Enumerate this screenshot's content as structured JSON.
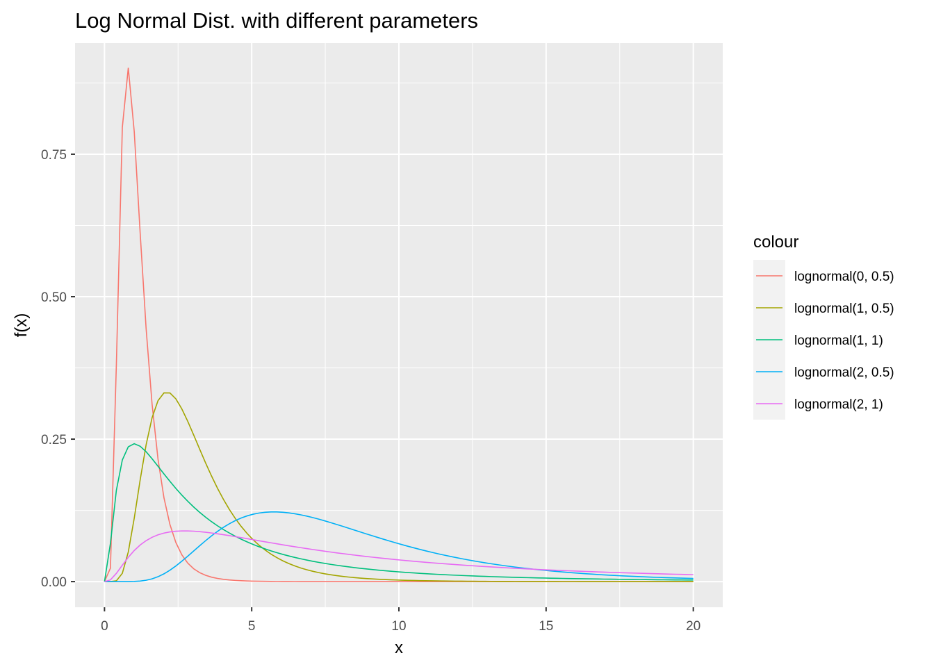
{
  "chart_data": {
    "type": "line",
    "title": "Log Normal Dist. with different parameters",
    "xlabel": "x",
    "ylabel": "f(x)",
    "xlim": [
      -1,
      21
    ],
    "ylim": [
      -0.045,
      0.945
    ],
    "x_ticks": [
      0,
      5,
      10,
      15,
      20
    ],
    "x_tick_labels": [
      "0",
      "5",
      "10",
      "15",
      "20"
    ],
    "y_ticks": [
      0,
      0.25,
      0.5,
      0.75
    ],
    "y_tick_labels": [
      "0.00",
      "0.25",
      "0.50",
      "0.75"
    ],
    "grid": true,
    "legend": {
      "title": "colour",
      "placement": "right"
    },
    "x_range": [
      0,
      20
    ],
    "series": [
      {
        "name": "lognormal(0, 0.5)",
        "meanlog": 0,
        "sdlog": 0.5,
        "color": "#F8766D"
      },
      {
        "name": "lognormal(1, 0.5)",
        "meanlog": 1,
        "sdlog": 0.5,
        "color": "#A3A500"
      },
      {
        "name": "lognormal(1, 1)",
        "meanlog": 1,
        "sdlog": 1,
        "color": "#00BF7D"
      },
      {
        "name": "lognormal(2, 0.5)",
        "meanlog": 2,
        "sdlog": 0.5,
        "color": "#00B0F6"
      },
      {
        "name": "lognormal(2, 1)",
        "meanlog": 2,
        "sdlog": 1,
        "color": "#E76BF3"
      }
    ],
    "colors": {
      "panel": "#EBEBEB",
      "grid": "#FFFFFF",
      "legend_key": "#F2F2F2",
      "tick": "#333333"
    }
  }
}
